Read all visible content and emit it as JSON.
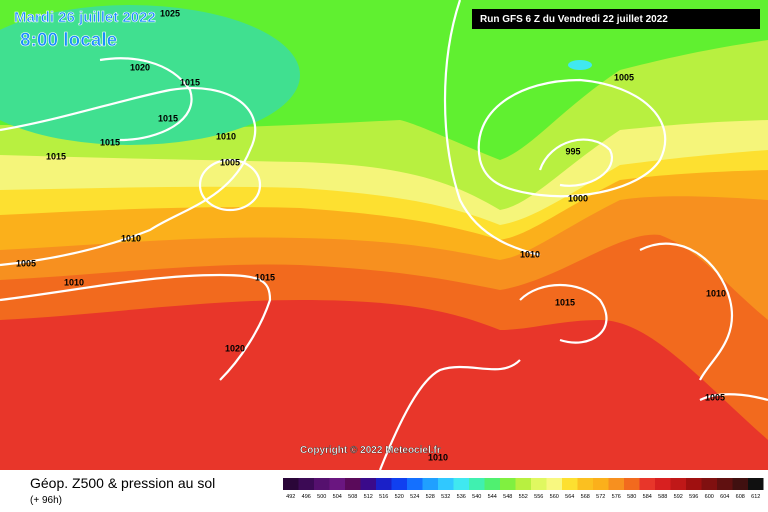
{
  "header": {
    "date": "Mardi 26 juillet 2022",
    "time": "8:00 locale",
    "run": "Run GFS 6 Z du Vendredi 22 juillet 2022"
  },
  "copyright": "Copyright © 2022 Meteociel.fr",
  "footer": {
    "title": "Géop. Z500 & pression au sol",
    "lead": "(+ 96h)"
  },
  "isobar_labels": [
    1025,
    1020,
    1015,
    1015,
    1015,
    1015,
    1010,
    1005,
    1010,
    1005,
    1010,
    1015,
    1020,
    1005,
    995,
    1000,
    1010,
    1015,
    1010,
    1005,
    1010
  ],
  "legend": {
    "values": [
      492,
      496,
      500,
      504,
      508,
      512,
      516,
      520,
      524,
      528,
      532,
      536,
      540,
      544,
      548,
      552,
      556,
      560,
      564,
      568,
      572,
      576,
      580,
      584,
      588,
      592,
      596,
      600,
      604,
      608,
      612
    ],
    "colors": [
      "#2a0638",
      "#3c0a55",
      "#55106e",
      "#6a1680",
      "#5a0a5a",
      "#3a0a8a",
      "#1a20c8",
      "#1040f0",
      "#1470ff",
      "#20a0ff",
      "#30c8ff",
      "#40e8f0",
      "#40f0b0",
      "#50f070",
      "#80f040",
      "#b8f040",
      "#e0f860",
      "#f8f880",
      "#fde030",
      "#fbc020",
      "#fbb01b",
      "#f7901f",
      "#f26a1e",
      "#e8362a",
      "#d82020",
      "#c01818",
      "#a01010",
      "#801010",
      "#601010",
      "#401010",
      "#101010"
    ]
  }
}
